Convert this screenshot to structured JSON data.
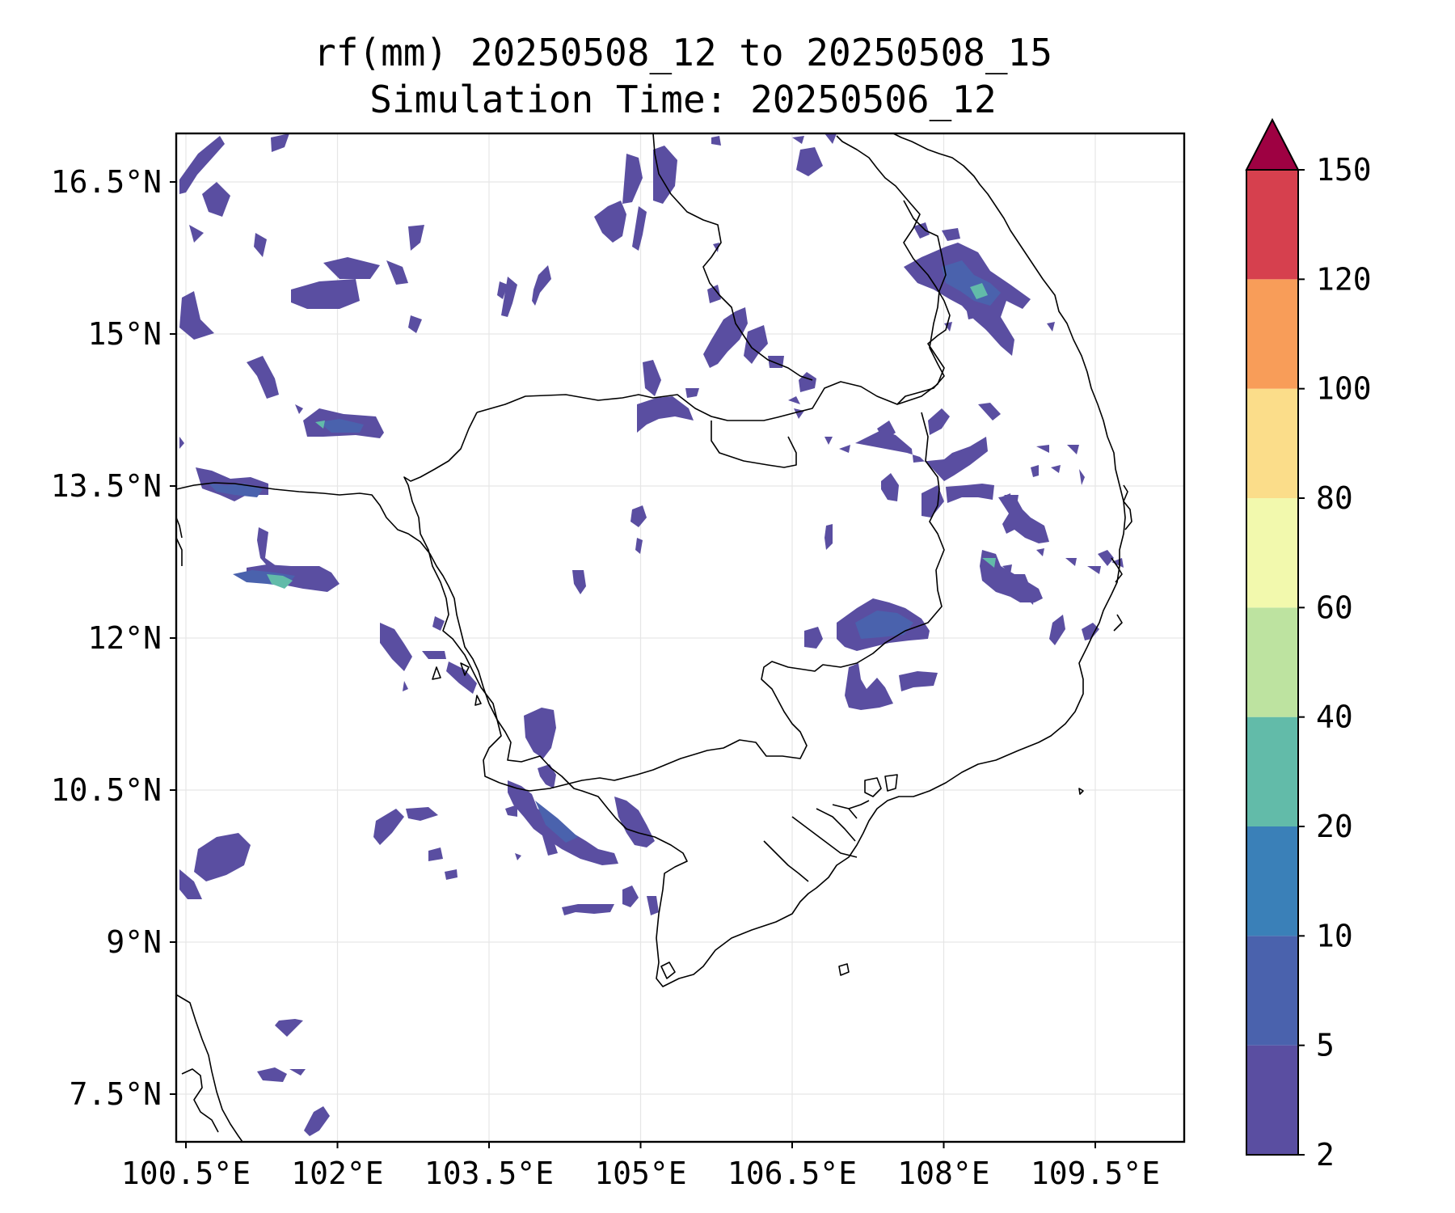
{
  "title": {
    "line1": "rf(mm) 20250508_12 to 20250508_15",
    "line2": "Simulation Time: 20250506_12"
  },
  "axes": {
    "x_ticks": [
      "100.5°E",
      "102°E",
      "103.5°E",
      "105°E",
      "106.5°E",
      "108°E",
      "109.5°E"
    ],
    "y_ticks": [
      "16.5°N",
      "15°N",
      "13.5°N",
      "12°N",
      "10.5°N",
      "9°N",
      "7.5°N"
    ]
  },
  "colorbar": {
    "levels": [
      "2",
      "5",
      "10",
      "20",
      "40",
      "60",
      "80",
      "100",
      "120",
      "150"
    ],
    "colors": [
      "#5a4ea1",
      "#4a62ad",
      "#3a80b8",
      "#62bba9",
      "#bde3a0",
      "#f2f9ad",
      "#fbdd8a",
      "#f89d59",
      "#d6404e",
      "#9e0142"
    ],
    "extend": "max"
  },
  "map": {
    "lon_range": [
      100.5,
      110.5
    ],
    "lat_range": [
      7.0,
      17.0
    ],
    "gridlines": true,
    "coastline_color": "#000000"
  }
}
